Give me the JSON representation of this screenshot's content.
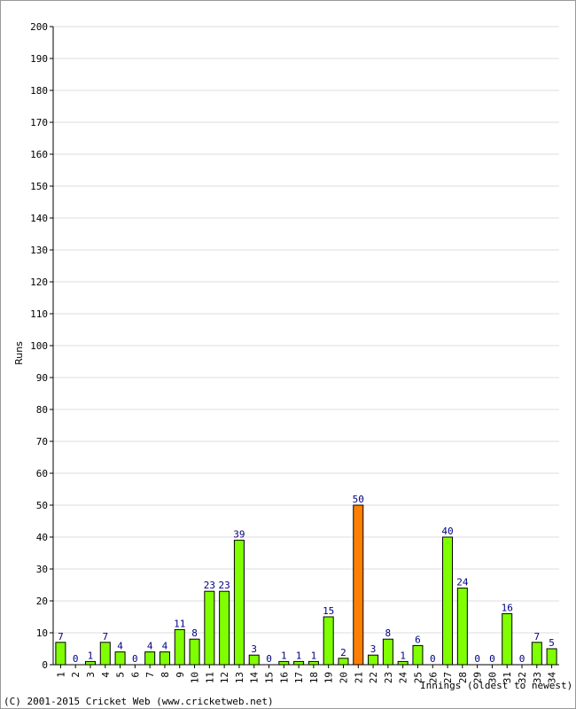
{
  "footer": {
    "copyright": "(C) 2001-2015 Cricket Web (www.cricketweb.net)"
  },
  "chart_data": {
    "type": "bar",
    "title": "",
    "xlabel": "Innings (oldest to newest)",
    "ylabel": "Runs",
    "ylim": [
      0,
      200
    ],
    "ytick_step": 10,
    "grid": true,
    "categories": [
      "1",
      "2",
      "3",
      "4",
      "5",
      "6",
      "7",
      "8",
      "9",
      "10",
      "11",
      "12",
      "13",
      "14",
      "15",
      "16",
      "17",
      "18",
      "19",
      "20",
      "21",
      "22",
      "23",
      "24",
      "25",
      "26",
      "27",
      "28",
      "29",
      "30",
      "31",
      "32",
      "33",
      "34"
    ],
    "values": [
      7,
      0,
      1,
      7,
      4,
      0,
      4,
      4,
      11,
      8,
      23,
      23,
      39,
      3,
      0,
      1,
      1,
      1,
      15,
      2,
      50,
      3,
      8,
      1,
      6,
      0,
      40,
      24,
      0,
      0,
      16,
      0,
      7,
      5
    ],
    "highlight_index": 20,
    "colors": {
      "bar": "#80ff00",
      "highlight": "#ff8000",
      "bar_border": "#000000",
      "value_label": "#000080",
      "grid": "#dddddd"
    }
  }
}
